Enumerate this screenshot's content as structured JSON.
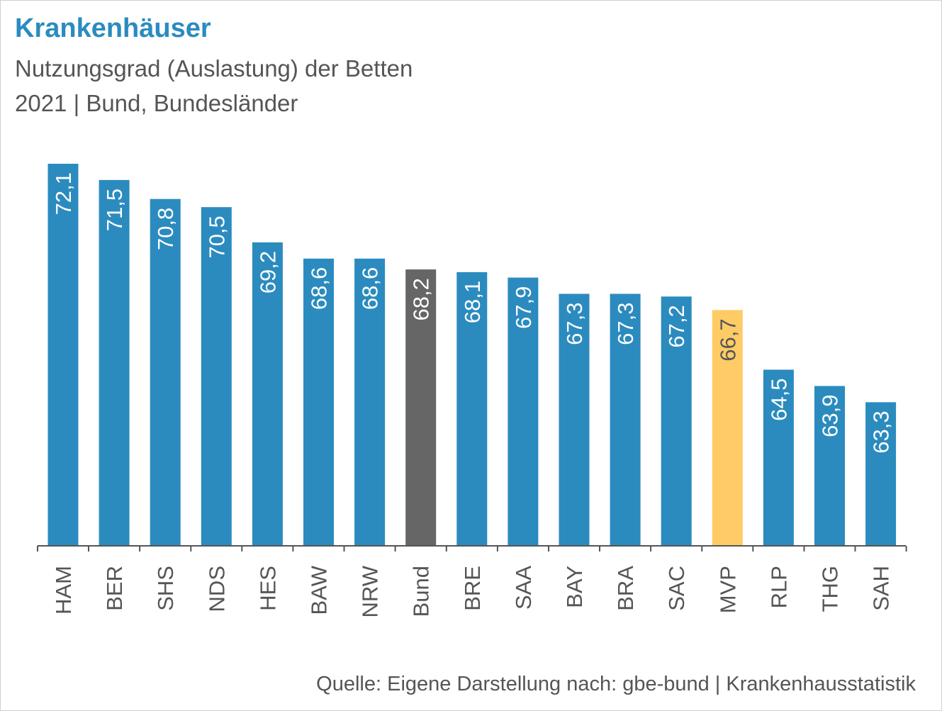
{
  "title": "Krankenhäuser",
  "subtitle_lines": [
    "Nutzungsgrad (Auslastung) der Betten",
    "2021 | Bund, Bundesländer"
  ],
  "source": "Quelle: Eigene Darstellung nach: gbe-bund  | Krankenhausstatistik",
  "colors": {
    "default": "#2b8bbf",
    "bund": "#666666",
    "mvp": "#fecb67",
    "label_on_dark": "#ffffff",
    "label_on_yellow": "#555555",
    "axis": "#555555"
  },
  "chart_data": {
    "type": "bar",
    "categories": [
      "HAM",
      "BER",
      "SHS",
      "NDS",
      "HES",
      "BAW",
      "NRW",
      "Bund",
      "BRE",
      "SAA",
      "BAY",
      "BRA",
      "SAC",
      "MVP",
      "RLP",
      "THG",
      "SAH"
    ],
    "values": [
      72.1,
      71.5,
      70.8,
      70.5,
      69.2,
      68.6,
      68.6,
      68.2,
      68.1,
      67.9,
      67.3,
      67.3,
      67.2,
      66.7,
      64.5,
      63.9,
      63.3
    ],
    "value_labels": [
      "72,1",
      "71,5",
      "70,8",
      "70,5",
      "69,2",
      "68,6",
      "68,6",
      "68,2",
      "68,1",
      "67,9",
      "67,3",
      "67,3",
      "67,2",
      "66,7",
      "64,5",
      "63,9",
      "63,3"
    ],
    "highlight": {
      "Bund": "bund",
      "MVP": "mvp"
    },
    "ylim": [
      58.0,
      72.1
    ],
    "grid": false,
    "legend": "none"
  }
}
